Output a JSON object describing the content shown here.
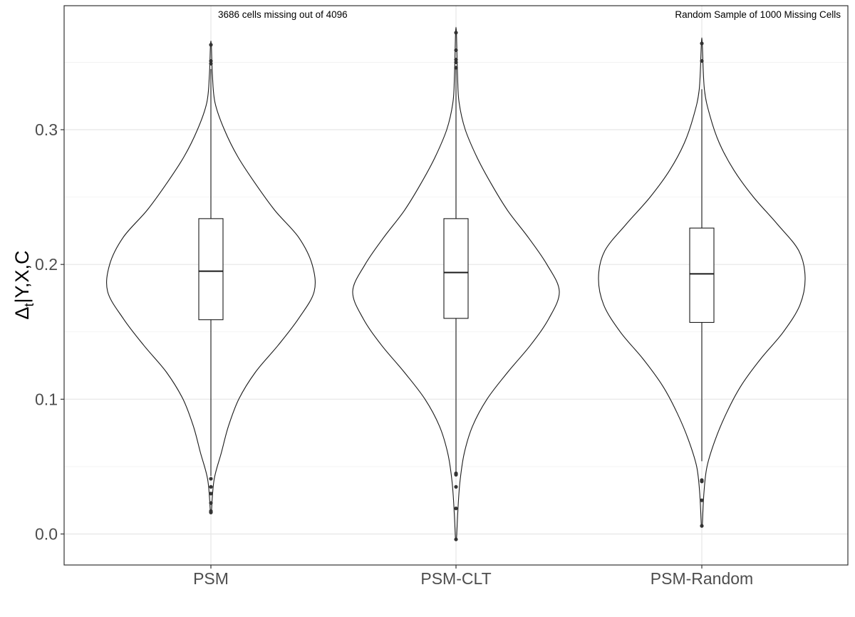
{
  "chart_data": {
    "type": "violin",
    "categories": [
      "PSM",
      "PSM-CLT",
      "PSM-Random"
    ],
    "ylabel": {
      "main": "Δ",
      "sub": "t",
      "rest": "|Y,X,C"
    },
    "ylim": [
      -0.023,
      0.392
    ],
    "yticks": [
      {
        "value": 0.0,
        "label": "0.0"
      },
      {
        "value": 0.1,
        "label": "0.1"
      },
      {
        "value": 0.2,
        "label": "0.2"
      },
      {
        "value": 0.3,
        "label": "0.3"
      }
    ],
    "grid": true,
    "annotations": [
      {
        "text": "3686 cells missing out of 4096",
        "x_category": 0,
        "anchor": "start"
      },
      {
        "text": "Random Sample of 1000 Missing Cells",
        "x_category": 2,
        "anchor": "end"
      }
    ],
    "series": [
      {
        "category": "PSM",
        "box": {
          "min": 0.043,
          "q1": 0.159,
          "median": 0.195,
          "q3": 0.234,
          "max": 0.345
        },
        "outliers": [
          0.363,
          0.351,
          0.349,
          0.041,
          0.035,
          0.03,
          0.023,
          0.017,
          0.016
        ],
        "violin_min": 0.016,
        "violin_max": 0.363,
        "density": [
          [
            0.016,
            0.005
          ],
          [
            0.04,
            0.03
          ],
          [
            0.06,
            0.1
          ],
          [
            0.08,
            0.17
          ],
          [
            0.1,
            0.27
          ],
          [
            0.12,
            0.43
          ],
          [
            0.14,
            0.65
          ],
          [
            0.16,
            0.85
          ],
          [
            0.18,
            1.0
          ],
          [
            0.2,
            0.98
          ],
          [
            0.22,
            0.85
          ],
          [
            0.24,
            0.62
          ],
          [
            0.26,
            0.43
          ],
          [
            0.28,
            0.26
          ],
          [
            0.3,
            0.13
          ],
          [
            0.32,
            0.04
          ],
          [
            0.34,
            0.015
          ],
          [
            0.363,
            0.004
          ]
        ]
      },
      {
        "category": "PSM-CLT",
        "box": {
          "min": 0.045,
          "q1": 0.16,
          "median": 0.194,
          "q3": 0.234,
          "max": 0.345
        },
        "outliers": [
          0.372,
          0.359,
          0.352,
          0.35,
          0.346,
          0.045,
          0.044,
          0.035,
          0.019,
          -0.004
        ],
        "violin_min": -0.004,
        "violin_max": 0.372,
        "density": [
          [
            -0.004,
            0.005
          ],
          [
            0.02,
            0.02
          ],
          [
            0.04,
            0.04
          ],
          [
            0.06,
            0.08
          ],
          [
            0.08,
            0.16
          ],
          [
            0.1,
            0.3
          ],
          [
            0.12,
            0.5
          ],
          [
            0.14,
            0.72
          ],
          [
            0.16,
            0.9
          ],
          [
            0.18,
            1.0
          ],
          [
            0.2,
            0.88
          ],
          [
            0.22,
            0.7
          ],
          [
            0.24,
            0.5
          ],
          [
            0.26,
            0.34
          ],
          [
            0.28,
            0.2
          ],
          [
            0.3,
            0.09
          ],
          [
            0.32,
            0.03
          ],
          [
            0.34,
            0.015
          ],
          [
            0.372,
            0.004
          ]
        ]
      },
      {
        "category": "PSM-Random",
        "box": {
          "min": 0.054,
          "q1": 0.157,
          "median": 0.193,
          "q3": 0.227,
          "max": 0.33
        },
        "outliers": [
          0.364,
          0.351,
          0.04,
          0.039,
          0.025,
          0.006
        ],
        "violin_min": 0.006,
        "violin_max": 0.364,
        "density": [
          [
            0.006,
            0.005
          ],
          [
            0.03,
            0.02
          ],
          [
            0.05,
            0.05
          ],
          [
            0.07,
            0.13
          ],
          [
            0.09,
            0.24
          ],
          [
            0.11,
            0.38
          ],
          [
            0.13,
            0.57
          ],
          [
            0.15,
            0.79
          ],
          [
            0.17,
            0.95
          ],
          [
            0.19,
            1.0
          ],
          [
            0.21,
            0.94
          ],
          [
            0.23,
            0.73
          ],
          [
            0.25,
            0.5
          ],
          [
            0.27,
            0.31
          ],
          [
            0.29,
            0.17
          ],
          [
            0.31,
            0.08
          ],
          [
            0.33,
            0.025
          ],
          [
            0.364,
            0.004
          ]
        ]
      }
    ]
  }
}
